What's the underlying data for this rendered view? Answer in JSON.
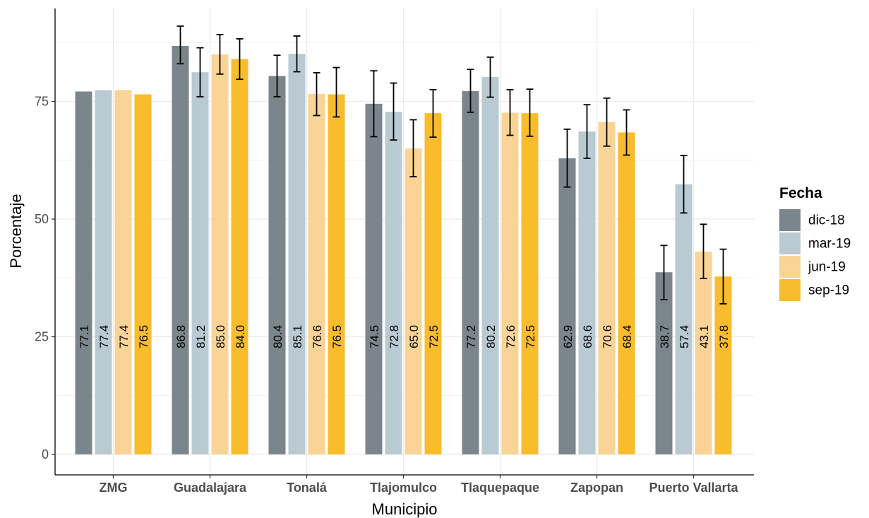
{
  "chart_data": {
    "type": "bar",
    "xlabel": "Municipio",
    "ylabel": "Porcentaje",
    "ylim": [
      0,
      95
    ],
    "yticks": [
      0,
      25,
      50,
      75
    ],
    "grid": true,
    "legend": {
      "title": "Fecha",
      "position": "right"
    },
    "categories": [
      "ZMG",
      "Guadalajara",
      "Tonalá",
      "Tlajomulco",
      "Tlaquepaque",
      "Zapopan",
      "Puerto Vallarta"
    ],
    "series": [
      {
        "name": "dic-18",
        "color": "#7b868c",
        "values": [
          77.1,
          86.8,
          80.4,
          74.5,
          77.2,
          62.9,
          38.7
        ],
        "labels": [
          "77.1",
          "86.8",
          "80.4",
          "74.5",
          "77.2",
          "62.9",
          "38.7"
        ],
        "err_low": [
          null,
          83.0,
          76.0,
          67.5,
          72.7,
          56.8,
          32.9
        ],
        "err_high": [
          null,
          91.0,
          84.8,
          81.5,
          81.8,
          69.1,
          44.4
        ]
      },
      {
        "name": "mar-19",
        "color": "#b9cad3",
        "values": [
          77.4,
          81.2,
          85.1,
          72.8,
          80.2,
          68.6,
          57.4
        ],
        "labels": [
          "77.4",
          "81.2",
          "85.1",
          "72.8",
          "80.2",
          "68.6",
          "57.4"
        ],
        "err_low": [
          null,
          76.0,
          81.3,
          66.8,
          75.9,
          62.9,
          51.3
        ],
        "err_high": [
          null,
          86.4,
          88.9,
          78.9,
          84.4,
          74.3,
          63.5
        ]
      },
      {
        "name": "jun-19",
        "color": "#f9d496",
        "values": [
          77.4,
          85.0,
          76.6,
          65.0,
          72.6,
          70.6,
          43.1
        ],
        "labels": [
          "77.4",
          "85.0",
          "76.6",
          "65.0",
          "72.6",
          "70.6",
          "43.1"
        ],
        "err_low": [
          null,
          80.8,
          72.0,
          59.0,
          67.8,
          65.5,
          37.4
        ],
        "err_high": [
          null,
          89.2,
          81.1,
          71.1,
          77.5,
          75.7,
          48.9
        ]
      },
      {
        "name": "sep-19",
        "color": "#f9bc2c",
        "values": [
          76.5,
          84.0,
          76.5,
          72.5,
          72.5,
          68.4,
          37.8
        ],
        "labels": [
          "76.5",
          "84.0",
          "76.5",
          "72.5",
          "72.5",
          "68.4",
          "37.8"
        ],
        "err_low": [
          null,
          79.7,
          71.7,
          67.4,
          67.6,
          63.6,
          32.0
        ],
        "err_high": [
          null,
          88.3,
          82.2,
          77.5,
          77.6,
          73.2,
          43.6
        ]
      }
    ]
  }
}
